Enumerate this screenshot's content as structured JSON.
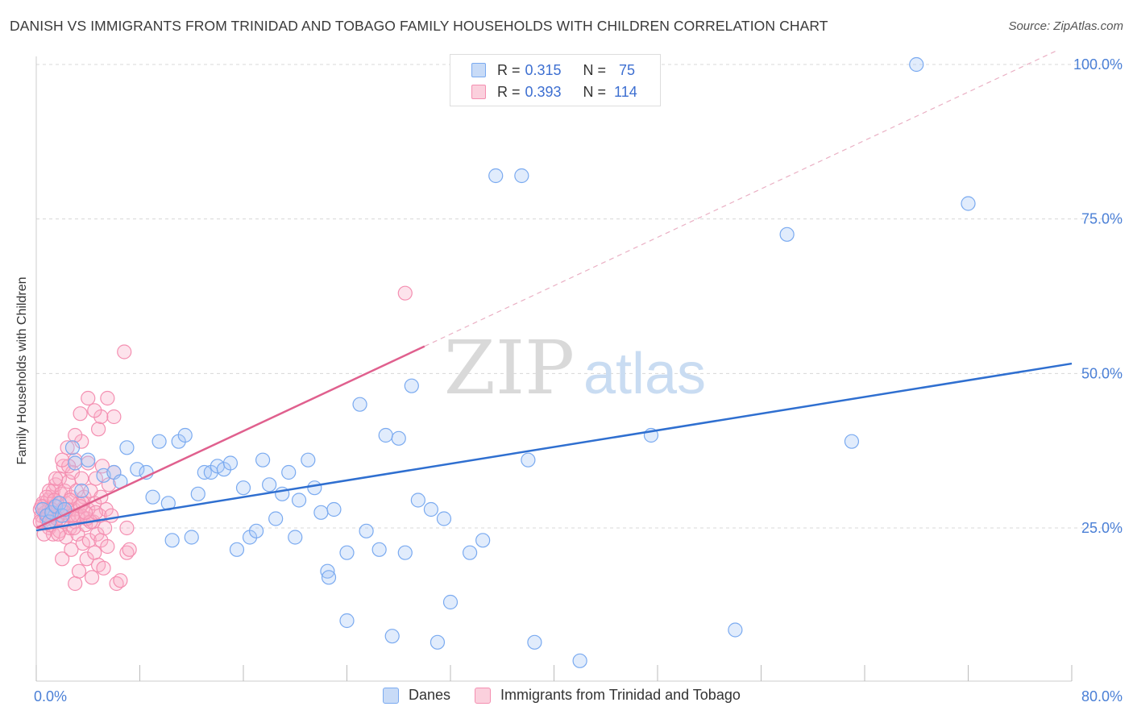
{
  "chart_data": {
    "type": "scatter",
    "title": "DANISH VS IMMIGRANTS FROM TRINIDAD AND TOBAGO FAMILY HOUSEHOLDS WITH CHILDREN CORRELATION CHART",
    "source": "Source: ZipAtlas.com",
    "xlabel": "",
    "ylabel": "Family Households with Children",
    "xlim": [
      0,
      80
    ],
    "ylim": [
      0,
      105
    ],
    "x_tick_labels": {
      "min": "0.0%",
      "max": "80.0%"
    },
    "y_ticks": [
      25,
      50,
      75,
      100
    ],
    "y_tick_labels": [
      "25.0%",
      "50.0%",
      "75.0%",
      "100.0%"
    ],
    "watermark": {
      "zip": "ZIP",
      "atlas": "atlas"
    },
    "legend": {
      "r_label": "R =",
      "n_label": "N =",
      "rows": [
        {
          "r": "0.315",
          "n": "75"
        },
        {
          "r": "0.393",
          "n": "114"
        }
      ]
    },
    "series": [
      {
        "name": "Danes",
        "color": "#7aaaf0",
        "line_color": "#2f6fd0",
        "r": 0.315,
        "n": 75,
        "trend": {
          "x0": 0,
          "y0": 24.6,
          "x1": 80,
          "y1": 51.6
        },
        "points": [
          [
            0.5,
            28
          ],
          [
            0.8,
            27
          ],
          [
            1.0,
            26
          ],
          [
            1.2,
            27.5
          ],
          [
            1.5,
            28.5
          ],
          [
            1.8,
            29
          ],
          [
            2.0,
            27
          ],
          [
            2.2,
            28
          ],
          [
            2.8,
            38
          ],
          [
            3.0,
            35.5
          ],
          [
            3.5,
            31
          ],
          [
            4.0,
            36
          ],
          [
            5.2,
            33.5
          ],
          [
            6.0,
            34
          ],
          [
            6.5,
            32.5
          ],
          [
            7.0,
            38
          ],
          [
            7.8,
            34.5
          ],
          [
            8.5,
            34
          ],
          [
            9.0,
            30
          ],
          [
            9.5,
            39
          ],
          [
            10.2,
            29
          ],
          [
            10.5,
            23
          ],
          [
            11.0,
            39
          ],
          [
            11.5,
            40
          ],
          [
            12.0,
            23.5
          ],
          [
            12.5,
            30.5
          ],
          [
            13.0,
            34
          ],
          [
            13.5,
            34
          ],
          [
            14.0,
            35
          ],
          [
            14.5,
            34.5
          ],
          [
            15.0,
            35.5
          ],
          [
            15.5,
            21.5
          ],
          [
            16.0,
            31.5
          ],
          [
            16.5,
            23.5
          ],
          [
            17.0,
            24.5
          ],
          [
            17.5,
            36
          ],
          [
            18.0,
            32
          ],
          [
            18.5,
            26.5
          ],
          [
            19.0,
            30.5
          ],
          [
            19.5,
            34
          ],
          [
            20.0,
            23.5
          ],
          [
            20.3,
            29.5
          ],
          [
            21.0,
            36
          ],
          [
            21.5,
            31.5
          ],
          [
            22.0,
            27.5
          ],
          [
            22.5,
            18
          ],
          [
            22.6,
            17
          ],
          [
            23.0,
            28
          ],
          [
            24.0,
            10
          ],
          [
            24.0,
            21
          ],
          [
            25.0,
            45
          ],
          [
            25.5,
            24.5
          ],
          [
            26.5,
            21.5
          ],
          [
            27.0,
            40
          ],
          [
            27.5,
            7.5
          ],
          [
            28.0,
            39.5
          ],
          [
            28.5,
            21
          ],
          [
            29.0,
            48
          ],
          [
            29.5,
            29.5
          ],
          [
            30.5,
            28
          ],
          [
            31.0,
            6.5
          ],
          [
            31.5,
            26.5
          ],
          [
            32.0,
            13
          ],
          [
            33.5,
            21
          ],
          [
            34.5,
            23
          ],
          [
            35.5,
            82
          ],
          [
            37.5,
            82
          ],
          [
            38.0,
            36
          ],
          [
            38.5,
            6.5
          ],
          [
            42.0,
            3.5
          ],
          [
            47.5,
            40
          ],
          [
            54.0,
            8.5
          ],
          [
            58.0,
            72.5
          ],
          [
            63.0,
            39
          ],
          [
            68.0,
            100
          ],
          [
            72.0,
            77.5
          ]
        ]
      },
      {
        "name": "Immigrants from Trinidad and Tobago",
        "color": "#f48fb1",
        "line_color": "#e0608e",
        "r": 0.393,
        "n": 114,
        "trend": {
          "x0": 0,
          "y0": 25.0,
          "x1": 30,
          "y1": 54.4
        },
        "trend_ext": {
          "x0": 30,
          "y0": 54.4,
          "x1": 79,
          "y1": 102.4
        },
        "points": [
          [
            0.3,
            28
          ],
          [
            0.4,
            27
          ],
          [
            0.5,
            29
          ],
          [
            0.5,
            26
          ],
          [
            0.6,
            28.5
          ],
          [
            0.7,
            27.5
          ],
          [
            0.8,
            26.5
          ],
          [
            0.9,
            29.5
          ],
          [
            1.0,
            28
          ],
          [
            1.0,
            25
          ],
          [
            1.1,
            30
          ],
          [
            1.2,
            27
          ],
          [
            1.3,
            31
          ],
          [
            1.3,
            24
          ],
          [
            1.4,
            28.5
          ],
          [
            1.5,
            26
          ],
          [
            1.5,
            32
          ],
          [
            1.6,
            29
          ],
          [
            1.7,
            27
          ],
          [
            1.8,
            33
          ],
          [
            1.8,
            24.5
          ],
          [
            1.9,
            30.5
          ],
          [
            2.0,
            28
          ],
          [
            2.0,
            20
          ],
          [
            2.1,
            35
          ],
          [
            2.1,
            26
          ],
          [
            2.2,
            31
          ],
          [
            2.3,
            29
          ],
          [
            2.3,
            23.5
          ],
          [
            2.4,
            38
          ],
          [
            2.5,
            27
          ],
          [
            2.5,
            32.5
          ],
          [
            2.6,
            25
          ],
          [
            2.7,
            30
          ],
          [
            2.7,
            21.5
          ],
          [
            2.8,
            34
          ],
          [
            2.9,
            28
          ],
          [
            3.0,
            26
          ],
          [
            3.0,
            36
          ],
          [
            3.0,
            16
          ],
          [
            3.1,
            31
          ],
          [
            3.2,
            24
          ],
          [
            3.3,
            29
          ],
          [
            3.3,
            18
          ],
          [
            3.4,
            43.5
          ],
          [
            3.5,
            27
          ],
          [
            3.5,
            33
          ],
          [
            3.6,
            22.5
          ],
          [
            3.7,
            30
          ],
          [
            3.8,
            25.5
          ],
          [
            3.9,
            20
          ],
          [
            4.0,
            28
          ],
          [
            4.0,
            35.5
          ],
          [
            4.0,
            46
          ],
          [
            4.1,
            23
          ],
          [
            4.2,
            31
          ],
          [
            4.3,
            17
          ],
          [
            4.4,
            26
          ],
          [
            4.5,
            29
          ],
          [
            4.5,
            21
          ],
          [
            4.6,
            33
          ],
          [
            4.7,
            24
          ],
          [
            4.8,
            41
          ],
          [
            4.8,
            19
          ],
          [
            4.9,
            27
          ],
          [
            5.0,
            30
          ],
          [
            5.0,
            23
          ],
          [
            5.1,
            35
          ],
          [
            5.2,
            18.5
          ],
          [
            5.3,
            25
          ],
          [
            5.4,
            28
          ],
          [
            5.5,
            46
          ],
          [
            5.5,
            22
          ],
          [
            5.6,
            32
          ],
          [
            5.8,
            27
          ],
          [
            6.0,
            34
          ],
          [
            6.2,
            16
          ],
          [
            6.5,
            16.5
          ],
          [
            6.0,
            43
          ],
          [
            5.0,
            43
          ],
          [
            4.5,
            44
          ],
          [
            3.5,
            39
          ],
          [
            3.0,
            40
          ],
          [
            2.5,
            35
          ],
          [
            2.0,
            36
          ],
          [
            1.5,
            33
          ],
          [
            1.0,
            31
          ],
          [
            7.0,
            25
          ],
          [
            7.0,
            21
          ],
          [
            7.2,
            21.5
          ],
          [
            6.8,
            53.5
          ],
          [
            28.5,
            63
          ],
          [
            0.3,
            26
          ],
          [
            0.6,
            24
          ],
          [
            0.8,
            30
          ],
          [
            1.1,
            25.5
          ],
          [
            1.4,
            29.5
          ],
          [
            1.7,
            24
          ],
          [
            2.2,
            27.5
          ],
          [
            2.6,
            29.5
          ],
          [
            2.9,
            25
          ],
          [
            3.2,
            27
          ],
          [
            3.6,
            29
          ],
          [
            3.9,
            26.5
          ],
          [
            4.2,
            26
          ],
          [
            4.6,
            27.5
          ],
          [
            0.4,
            28.5
          ],
          [
            0.9,
            27
          ],
          [
            1.2,
            28
          ],
          [
            1.6,
            26.5
          ],
          [
            2.4,
            28
          ],
          [
            2.8,
            27
          ],
          [
            3.4,
            28.5
          ],
          [
            3.8,
            27.5
          ]
        ]
      }
    ]
  }
}
